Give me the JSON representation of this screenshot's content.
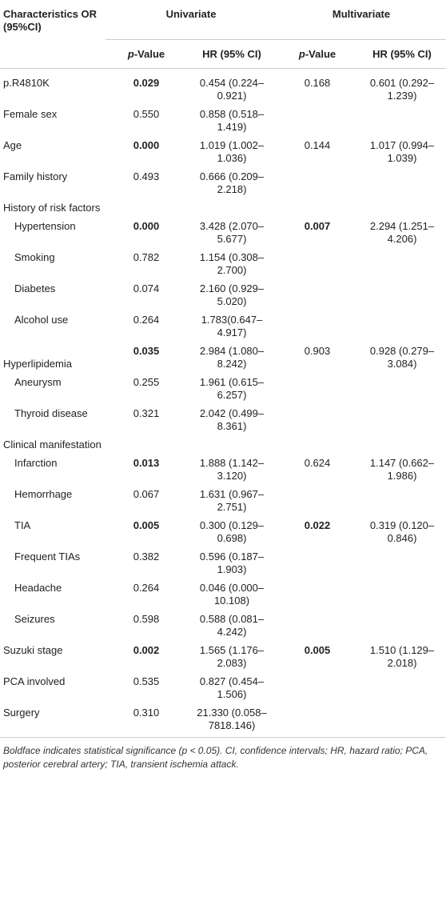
{
  "header": {
    "characteristics": "Characteristics OR (95%CI)",
    "groups": [
      "Univariate",
      "Multivariate"
    ],
    "columns": [
      "p-Value",
      "HR (95% CI)",
      "p-Value",
      "HR (95% CI)"
    ]
  },
  "table": {
    "rows": [
      {
        "label": "p.R4810K",
        "values": [
          "0.029",
          "0.454 (0.224–0.921)",
          "0.168",
          "0.601 (0.292–1.239)"
        ],
        "bold_columns": [
          0
        ]
      },
      {
        "label": "Female sex",
        "values": [
          "0.550",
          "0.858 (0.518–1.419)",
          null,
          null
        ]
      },
      {
        "label": "Age",
        "values": [
          "0.000",
          "1.019 (1.002–1.036)",
          "0.144",
          "1.017 (0.994–1.039)"
        ],
        "bold_columns": [
          0
        ]
      },
      {
        "label": "Family history",
        "values": [
          "0.493",
          "0.666 (0.209–2.218)",
          null,
          null
        ]
      },
      {
        "label": "History of risk factors"
      },
      {
        "label": "Hypertension",
        "level": 1,
        "values": [
          "0.000",
          "3.428 (2.070–5.677)",
          "0.007",
          "2.294 (1.251–4.206)"
        ],
        "bold_columns": [
          0,
          2
        ]
      },
      {
        "label": "Smoking",
        "level": 1,
        "values": [
          "0.782",
          "1.154 (0.308–2.700)",
          null,
          null
        ]
      },
      {
        "label": "Diabetes",
        "level": 1,
        "values": [
          "0.074",
          "2.160 (0.929–5.020)",
          null,
          null
        ]
      },
      {
        "label": "Alcohol use",
        "level": 1,
        "values": [
          "0.264",
          "1.783(0.647–4.917)",
          null,
          null
        ]
      },
      {
        "label": "Hyperlipidemia",
        "values": [
          "0.035",
          "2.984 (1.080–8.242)",
          "0.903",
          "0.928 (0.279–3.084)"
        ],
        "bold_columns": [
          0
        ]
      },
      {
        "label": "Aneurysm",
        "level": 1,
        "values": [
          "0.255",
          "1.961 (0.615–6.257)",
          null,
          null
        ]
      },
      {
        "label": "Thyroid disease",
        "level": 1,
        "values": [
          "0.321",
          "2.042 (0.499–8.361)",
          null,
          null
        ]
      },
      {
        "label": "Clinical manifestation"
      },
      {
        "label": "Infarction",
        "level": 1,
        "values": [
          "0.013",
          "1.888 (1.142–3.120)",
          "0.624",
          "1.147 (0.662–1.986)"
        ],
        "bold_columns": [
          0
        ]
      },
      {
        "label": "Hemorrhage",
        "level": 1,
        "values": [
          "0.067",
          "1.631 (0.967–2.751)",
          null,
          null
        ]
      },
      {
        "label": "TIA",
        "level": 1,
        "values": [
          "0.005",
          "0.300 (0.129–0.698)",
          "0.022",
          "0.319 (0.120–0.846)"
        ],
        "bold_columns": [
          0,
          2
        ]
      },
      {
        "label": "Frequent TIAs",
        "level": 1,
        "values": [
          "0.382",
          "0.596 (0.187–1.903)",
          null,
          null
        ]
      },
      {
        "label": "Headache",
        "level": 1,
        "values": [
          "0.264",
          "0.046 (0.000–10.108)",
          null,
          null
        ]
      },
      {
        "label": "Seizures",
        "level": 1,
        "values": [
          "0.598",
          "0.588 (0.081–4.242)",
          null,
          null
        ]
      },
      {
        "label": "Suzuki stage",
        "values": [
          "0.002",
          "1.565 (1.176–2.083)",
          "0.005",
          "1.510 (1.129–2.018)"
        ],
        "bold_columns": [
          0,
          2
        ]
      },
      {
        "label": "PCA involved",
        "values": [
          "0.535",
          "0.827 (0.454–1.506)",
          null,
          null
        ]
      },
      {
        "label": "Surgery",
        "values": [
          "0.310",
          "21.330 (0.058–7818.146)",
          null,
          null
        ]
      }
    ]
  },
  "footnote": "Boldface indicates statistical significance (p < 0.05). CI, confidence intervals; HR, hazard ratio; PCA, posterior cerebral artery; TIA, transient ischemia attack."
}
